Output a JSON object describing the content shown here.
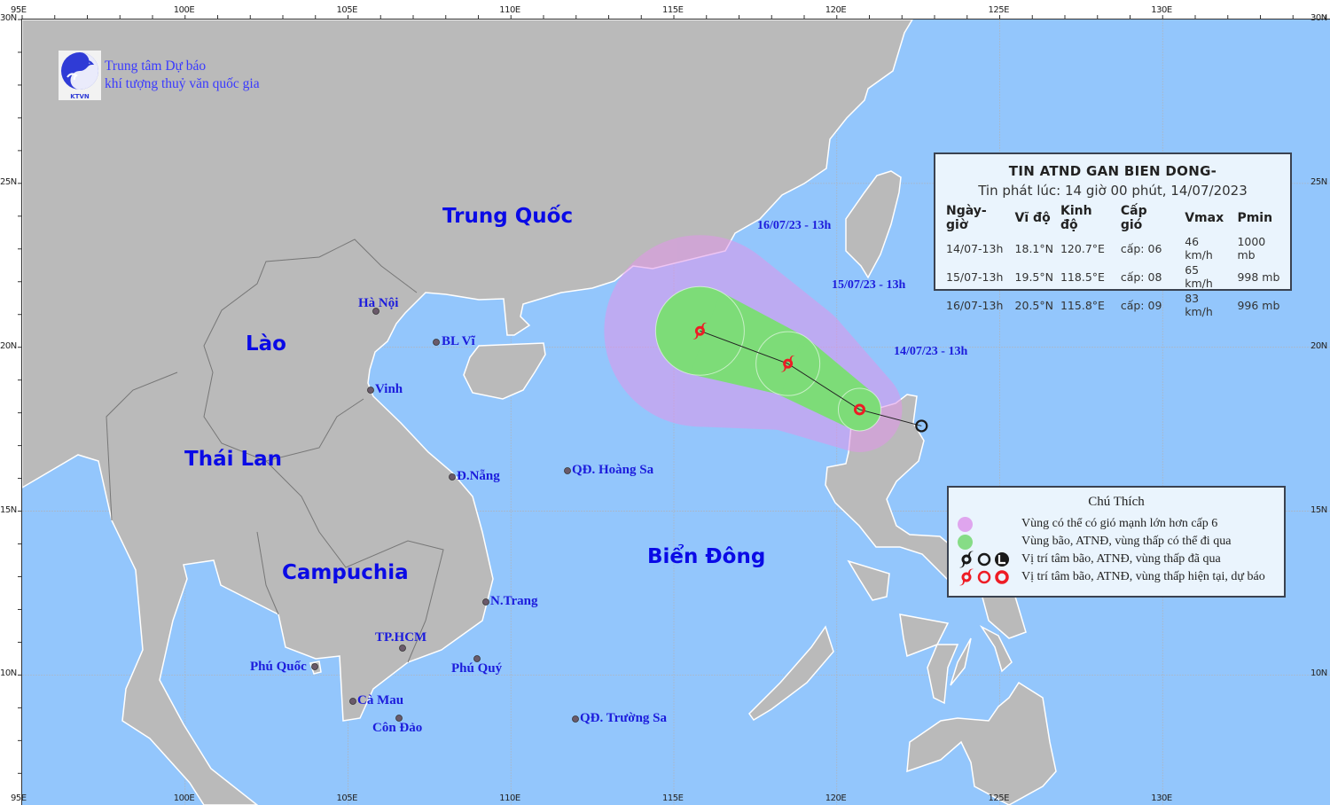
{
  "header": {
    "org_line1": "Trung tâm Dự báo",
    "org_line2": "khí tượng thuỷ văn quốc gia",
    "logo_text": "KTVN"
  },
  "axes": {
    "lon_ticks": [
      {
        "value": 95,
        "label": "95E"
      },
      {
        "value": 100,
        "label": "100E"
      },
      {
        "value": 105,
        "label": "105E"
      },
      {
        "value": 110,
        "label": "110E"
      },
      {
        "value": 115,
        "label": "115E"
      },
      {
        "value": 120,
        "label": "120E"
      },
      {
        "value": 125,
        "label": "125E"
      },
      {
        "value": 130,
        "label": "130E"
      }
    ],
    "lat_ticks": [
      {
        "value": 30,
        "label": "30N"
      },
      {
        "value": 25,
        "label": "25N"
      },
      {
        "value": 20,
        "label": "20N"
      },
      {
        "value": 15,
        "label": "15N"
      },
      {
        "value": 10,
        "label": "10N"
      }
    ]
  },
  "countries": [
    "Trung Quốc",
    "Lào",
    "Thái Lan",
    "Campuchia"
  ],
  "sea": "Biển Đông",
  "cities": [
    "Hà Nội",
    "BL Vĩ",
    "Vinh",
    "Đ.Nẵng",
    "QĐ. Hoàng Sa",
    "N.Trang",
    "TP.HCM",
    "Phú Quốc",
    "Phú Quý",
    "Cà Mau",
    "Côn Đảo",
    "QĐ. Trường Sa"
  ],
  "forecast_labels": [
    "16/07/23 - 13h",
    "15/07/23 - 13h",
    "14/07/23 - 13h"
  ],
  "bulletin": {
    "title": "TIN ATND GAN BIEN DONG-",
    "issued": "Tin phát lúc: 14 giờ 00 phút, 14/07/2023",
    "columns": [
      "Ngày-giờ",
      "Vĩ độ",
      "Kinh độ",
      "Cấp gió",
      "Vmax",
      "Pmin"
    ],
    "rows": [
      [
        "14/07-13h",
        "18.1°N",
        "120.7°E",
        "cấp: 06",
        "46 km/h",
        "1000 mb"
      ],
      [
        "15/07-13h",
        "19.5°N",
        "118.5°E",
        "cấp: 08",
        "65 km/h",
        "998 mb"
      ],
      [
        "16/07-13h",
        "20.5°N",
        "115.8°E",
        "cấp: 09",
        "83 km/h",
        "996 mb"
      ]
    ]
  },
  "legend": {
    "title": "Chú Thích",
    "items": [
      "Vùng có thể có gió mạnh lớn hơn cấp 6",
      "Vùng bão, ATNĐ, vùng thấp có thể đi qua",
      "Vị trí tâm bão, ATNĐ, vùng thấp đã qua",
      "Vị trí tâm bão, ATNĐ, vùng thấp hiện tại, dự báo"
    ]
  },
  "track": {
    "past": [
      {
        "lat": 17.6,
        "lon": 122.6,
        "type": "low-circle"
      }
    ],
    "current_forecast": [
      {
        "time": "14/07-13h",
        "lat": 18.1,
        "lon": 120.7,
        "type": "tropical-depression"
      },
      {
        "time": "15/07-13h",
        "lat": 19.5,
        "lon": 118.5,
        "type": "storm"
      },
      {
        "time": "16/07-13h",
        "lat": 20.5,
        "lon": 115.8,
        "type": "storm"
      }
    ]
  },
  "colors": {
    "sea": "#93c6fc",
    "land": "#bababa",
    "strong_wind_zone": "#e196ea",
    "track_zone": "#7ddc78",
    "current_forecast_symbol": "#ee1c25",
    "past_symbol": "#1a1a1a",
    "label_blue": "#1c1cdc"
  }
}
